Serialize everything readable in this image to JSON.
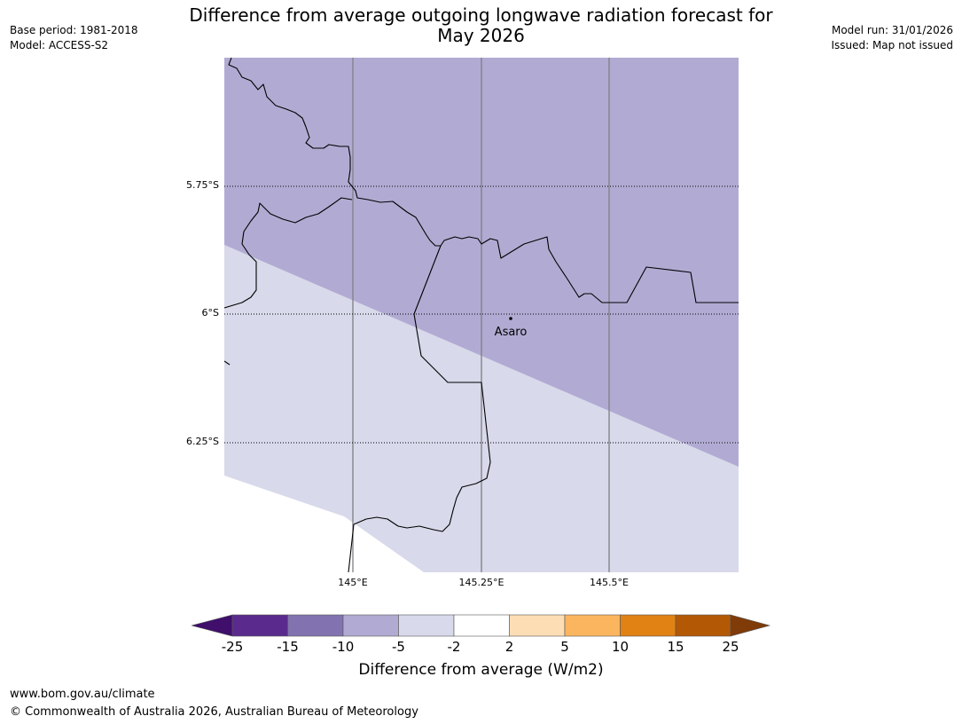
{
  "header": {
    "title_line1": "Difference from average outgoing longwave radiation forecast for",
    "title_line2": "May 2026",
    "base_period": "Base period: 1981-2018",
    "model": "Model: ACCESS-S2",
    "model_run": "Model run: 31/01/2026",
    "issued": "Issued: Map not issued"
  },
  "map": {
    "lat_labels": [
      "5.75°S",
      "6°S",
      "6.25°S"
    ],
    "lon_labels": [
      "145°E",
      "145.25°E",
      "145.5°E"
    ],
    "place": "Asaro",
    "colors": {
      "band_-10_-5": "#b1abd3",
      "band_-5_-2": "#d8d9ea",
      "nodata": "#ffffff"
    }
  },
  "colorbar": {
    "title": "Difference from average (W/m2)",
    "ticks": [
      "-25",
      "-15",
      "-10",
      "-5",
      "-2",
      "2",
      "5",
      "10",
      "15",
      "25"
    ],
    "colors": [
      "#3f0f6b",
      "#5a2b8d",
      "#8273b0",
      "#b1abd3",
      "#d8d9ea",
      "#ffffff",
      "#fddeb4",
      "#fbb55f",
      "#e08214",
      "#b35906",
      "#7f3b08"
    ]
  },
  "footer": {
    "url": "www.bom.gov.au/climate",
    "copyright": "© Commonwealth of Australia 2026, Australian Bureau of Meteorology"
  }
}
